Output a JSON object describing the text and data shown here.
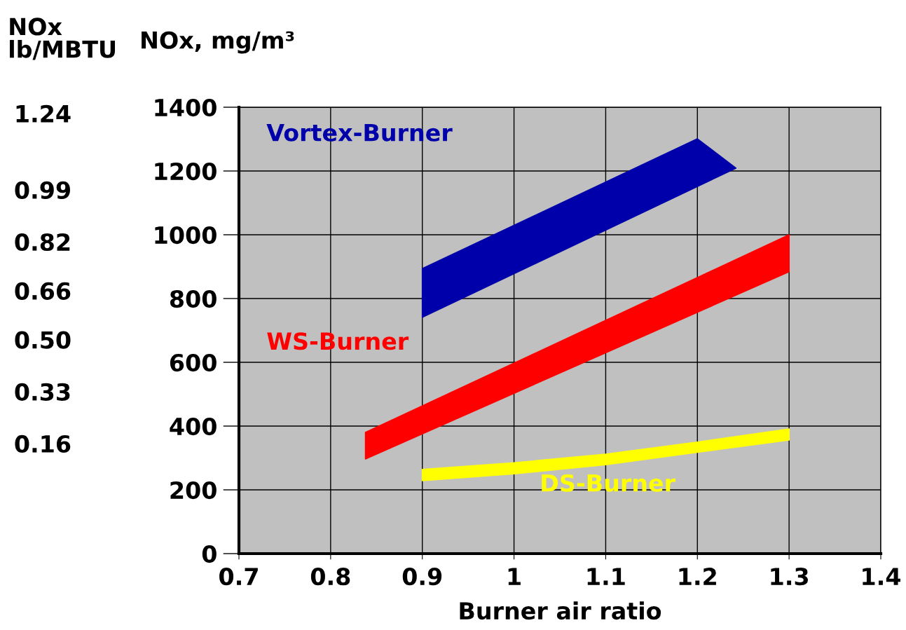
{
  "chart_data": {
    "type": "area",
    "xlabel": "Burner air ratio",
    "ylabel": "NOx, mg/m³",
    "y2label": "NOx\nlb/MBTU",
    "xlim": [
      0.7,
      1.4
    ],
    "xticks": [
      0.7,
      0.8,
      0.9,
      {
        "value": 1,
        "label": "1"
      },
      1.1,
      1.2,
      1.3,
      1.4
    ],
    "ylim": [
      0,
      1400
    ],
    "yticks": [
      0,
      200,
      400,
      600,
      800,
      1000,
      1200,
      1400
    ],
    "y2lim": [
      -0.2,
      1.26
    ],
    "y2ticks": [
      0.16,
      0.33,
      {
        "value": 0.5,
        "label": "0.50"
      },
      0.66,
      0.82,
      0.99,
      1.24
    ],
    "grid": true,
    "legend": false,
    "series": [
      {
        "name": "Vortex-Burner",
        "color": "#0000aa",
        "x": [
          0.9,
          1.2,
          1.242,
          0.9
        ],
        "values": [
          894,
          1301,
          1209,
          741
        ]
      },
      {
        "name": "WS-Burner",
        "color": "#ff0000",
        "x": [
          0.838,
          1.3,
          1.3,
          0.838
        ],
        "values": [
          380,
          1000,
          884,
          297
        ]
      },
      {
        "name": "DS-Burner",
        "color": "#ffff00",
        "x": [
          0.9,
          1.0,
          1.1,
          1.2,
          1.3,
          1.3,
          1.2,
          1.1,
          1.0,
          0.9
        ],
        "values": [
          264,
          285,
          312,
          350,
          391,
          356,
          318,
          279,
          250,
          229
        ]
      }
    ]
  }
}
